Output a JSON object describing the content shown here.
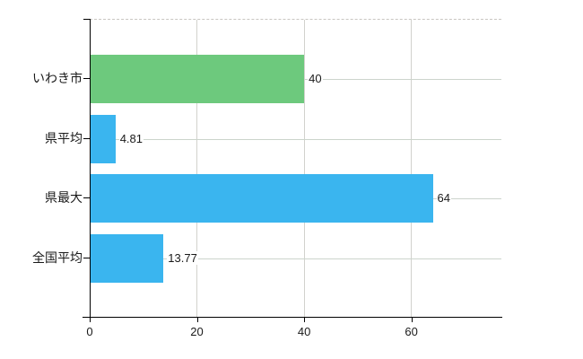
{
  "chart_data": {
    "type": "bar",
    "orientation": "horizontal",
    "title": "",
    "xlabel": "",
    "ylabel": "",
    "categories": [
      "いわき市",
      "県平均",
      "県最大",
      "全国平均"
    ],
    "values": [
      40,
      4.81,
      64,
      13.77
    ],
    "value_labels": [
      "40",
      "4.81",
      "64",
      "13.77"
    ],
    "bar_colors": [
      "#6dc97d",
      "#3ab5ef",
      "#3ab5ef",
      "#3ab5ef"
    ],
    "x_ticks": [
      0,
      20,
      40,
      60
    ],
    "x_tick_labels": [
      "0",
      "20",
      "40",
      "60"
    ],
    "xlim": [
      0,
      76.8
    ],
    "grid": true,
    "legend": "none"
  },
  "colors": {
    "bar_green": "#6dc97d",
    "bar_blue": "#3ab5ef",
    "axis": "#000000",
    "grid_vertical": "#d2d2cd",
    "grid_horizontal": "#ccd4cc",
    "plot_top_border": "#c9c6c2",
    "text": "#1a1a1a",
    "background": "#ffffff"
  }
}
